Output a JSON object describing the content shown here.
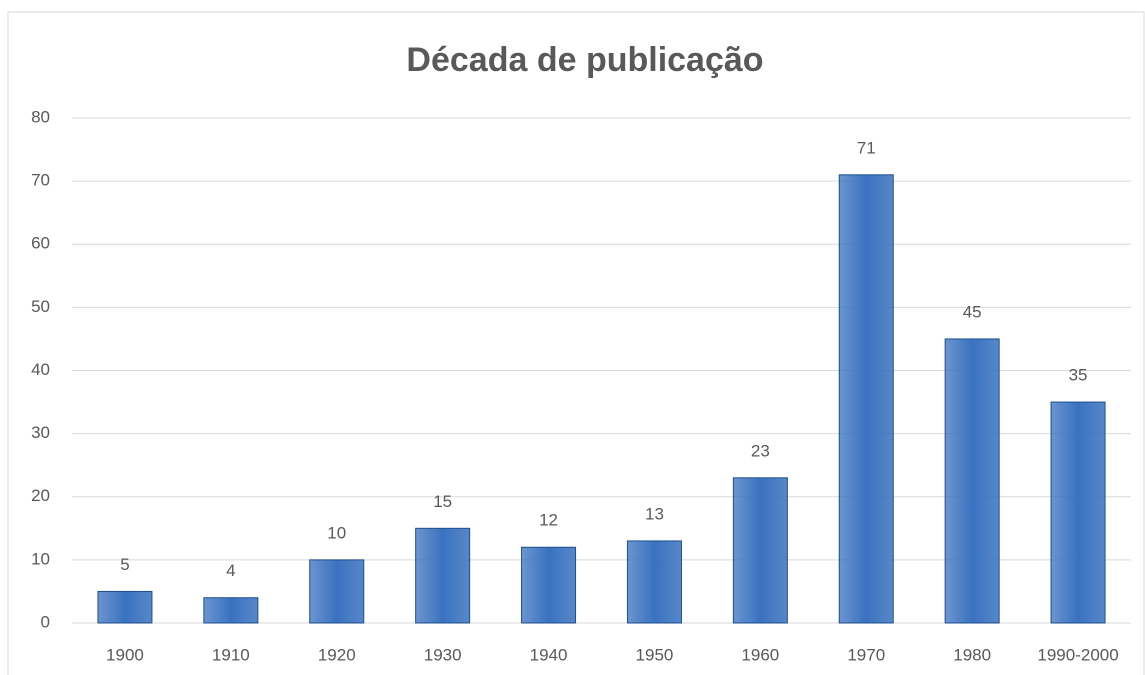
{
  "chart_data": {
    "type": "bar",
    "title": "Década de publicação",
    "categories": [
      "1900",
      "1910",
      "1920",
      "1930",
      "1940",
      "1950",
      "1960",
      "1970",
      "1980",
      "1990-2000"
    ],
    "values": [
      5,
      4,
      10,
      15,
      12,
      13,
      23,
      71,
      45,
      35
    ],
    "color": "#3a72c0",
    "ylim": [
      0,
      80
    ],
    "yticks": [
      0,
      10,
      20,
      30,
      40,
      50,
      60,
      70,
      80
    ],
    "grid": true
  }
}
